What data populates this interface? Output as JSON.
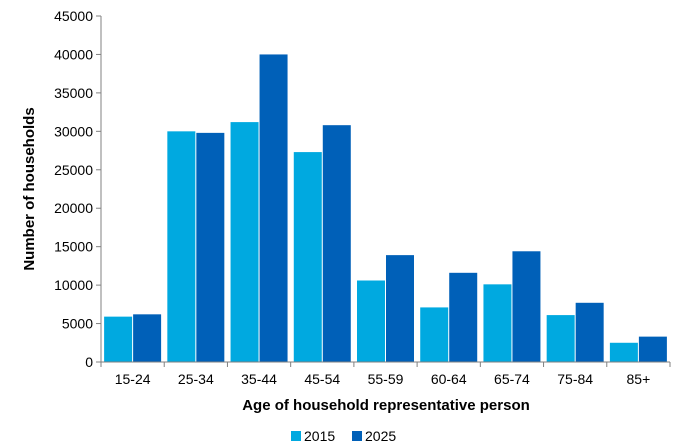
{
  "chart_data": {
    "type": "bar",
    "title": "",
    "xlabel": "Age of household representative person",
    "ylabel": "Number of households",
    "categories": [
      "15-24",
      "25-34",
      "35-44",
      "45-54",
      "55-59",
      "60-64",
      "65-74",
      "75-84",
      "85+"
    ],
    "series": [
      {
        "name": "2015",
        "color": "#00a9e0",
        "values": [
          5900,
          30000,
          31200,
          27300,
          10600,
          7100,
          10100,
          6100,
          2500
        ]
      },
      {
        "name": "2025",
        "color": "#0060b8",
        "values": [
          6200,
          29800,
          40000,
          30800,
          13900,
          11600,
          14400,
          7700,
          3300
        ]
      }
    ],
    "ylim": [
      0,
      45000
    ],
    "yticks": [
      "0",
      "5000",
      "10000",
      "15000",
      "20000",
      "25000",
      "30000",
      "35000",
      "40000",
      "45000"
    ],
    "grid": false,
    "legend_position": "bottom"
  }
}
